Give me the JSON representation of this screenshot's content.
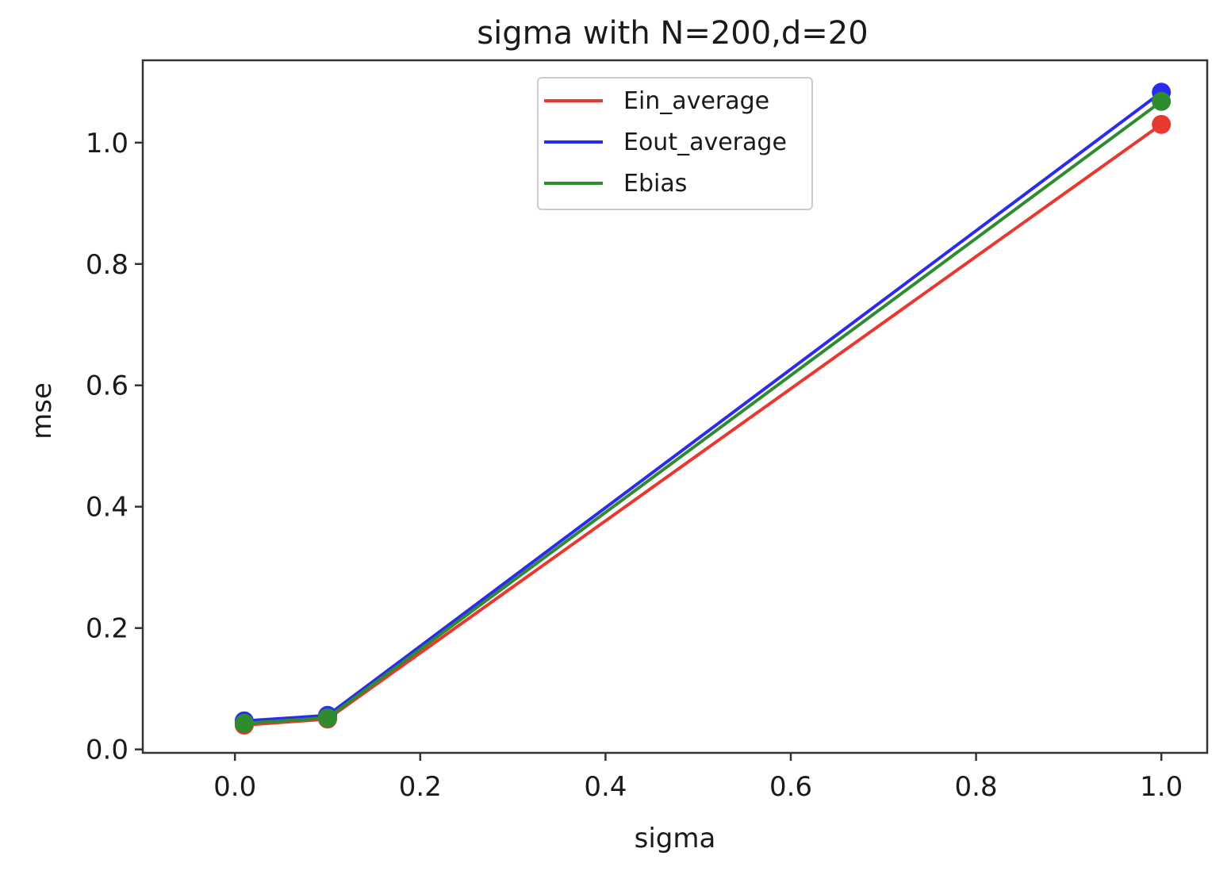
{
  "chart_data": {
    "type": "line",
    "title": "sigma with N=200,d=20",
    "xlabel": "sigma",
    "ylabel": "mse",
    "xlim": [
      -0.0995,
      1.0495
    ],
    "ylim": [
      -0.0057,
      1.1357
    ],
    "xticks": [
      0.0,
      0.2,
      0.4,
      0.6,
      0.8,
      1.0
    ],
    "xtick_labels": [
      "0.0",
      "0.2",
      "0.4",
      "0.6",
      "0.8",
      "1.0"
    ],
    "yticks": [
      0.0,
      0.2,
      0.4,
      0.6,
      0.8,
      1.0
    ],
    "ytick_labels": [
      "0.0",
      "0.2",
      "0.4",
      "0.6",
      "0.8",
      "1.0"
    ],
    "x": [
      0.01,
      0.1,
      1.0
    ],
    "series": [
      {
        "name": "Ein_average",
        "color": "#e8382f",
        "values": [
          0.04,
          0.05,
          1.03
        ]
      },
      {
        "name": "Eout_average",
        "color": "#2b2bf0",
        "values": [
          0.047,
          0.056,
          1.083
        ]
      },
      {
        "name": "Ebias",
        "color": "#2e8b2e",
        "values": [
          0.043,
          0.052,
          1.068
        ]
      }
    ],
    "legend_position": "upper center",
    "grid": false,
    "markers": true
  }
}
